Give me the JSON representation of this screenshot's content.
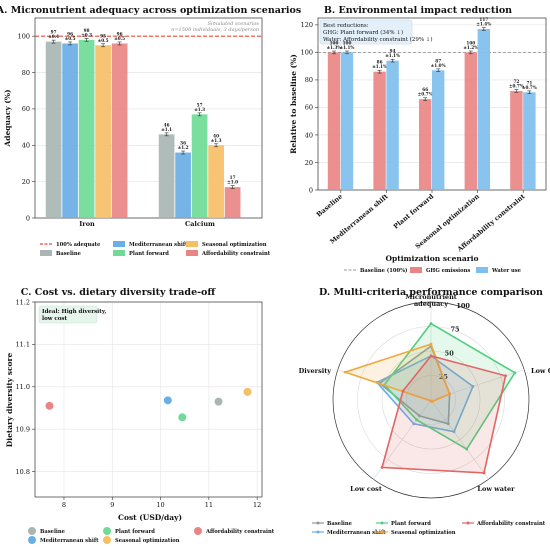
{
  "chart_data": [
    {
      "panel": "A",
      "type": "bar",
      "title": "A. Micronutrient adequacy across optimization scenarios",
      "ylabel": "Adequacy (%)",
      "ylim": [
        0,
        110
      ],
      "yticks": [
        "0",
        "20",
        "40",
        "60",
        "80",
        "100"
      ],
      "categories": [
        "Iron",
        "Calcium"
      ],
      "reference_line": {
        "value": 100,
        "label": "100% adequate",
        "color": "#e74c3c"
      },
      "annotation": "Simulated scenarios\nn=1500 individuals, 3 days/person",
      "series": [
        {
          "name": "Baseline",
          "color": "#a9b6b4",
          "values": [
            97,
            46
          ],
          "labels": [
            "97\n±0.4",
            "46\n±1.1"
          ]
        },
        {
          "name": "Mediterranean shift",
          "color": "#6aaee6",
          "values": [
            96,
            36
          ],
          "labels": [
            "96\n±0.5",
            "36\n±1.2"
          ]
        },
        {
          "name": "Plant forward",
          "color": "#6fdb97",
          "values": [
            98,
            57
          ],
          "labels": [
            "98\n±0.3",
            "57\n±1.3"
          ]
        },
        {
          "name": "Seasonal optimization",
          "color": "#f5bf66",
          "values": [
            95,
            40
          ],
          "labels": [
            "95\n±0.5",
            "40\n±1.3"
          ]
        },
        {
          "name": "Affordability constraint",
          "color": "#e98585",
          "values": [
            96,
            17
          ],
          "labels": [
            "96\n±0.5",
            "17\n±1.0"
          ]
        }
      ],
      "legend": [
        "100% adequate",
        "Baseline",
        "Mediterranean shift",
        "Plant forward",
        "Seasonal optimization",
        "Affordability constraint"
      ]
    },
    {
      "panel": "B",
      "type": "bar",
      "title": "B. Environmental impact reduction",
      "xlabel": "Optimization scenario",
      "ylabel": "Relative to baseline (%)",
      "ylim": [
        0,
        125
      ],
      "yticks": [
        "0",
        "20",
        "40",
        "60",
        "80",
        "100",
        "120"
      ],
      "categories": [
        "Baseline",
        "Mediterranean shift",
        "Plant forward",
        "Seasonal optimization",
        "Affordability constraint"
      ],
      "reference_line": {
        "value": 100,
        "label": "Baseline (100%)",
        "color": "#999999"
      },
      "infobox": [
        "Best reductions:",
        "GHG: Plant forward (34% ↓)",
        "Water: Affordability constraint (29% ↓)"
      ],
      "series": [
        {
          "name": "GHG emissions",
          "color": "#e98585",
          "values": [
            100,
            86,
            66,
            100,
            72
          ],
          "labels": [
            "100\n±1.3%",
            "86\n±1.1%",
            "66\n±0.7%",
            "100\n±1.2%",
            "72\n±0.7%"
          ]
        },
        {
          "name": "Water use",
          "color": "#7fbfee",
          "values": [
            100,
            94,
            87,
            117,
            71
          ],
          "labels": [
            "100\n±1.1%",
            "94\n±1.1%",
            "87\n±1.0%",
            "117\n±1.4%",
            "71\n±0.7%"
          ]
        }
      ],
      "legend": [
        "Baseline (100%)",
        "GHG emissions",
        "Water use"
      ]
    },
    {
      "panel": "C",
      "type": "scatter",
      "title": "C. Cost vs. dietary diversity trade-off",
      "xlabel": "Cost (USD/day)",
      "ylabel": "Dietary diversity score",
      "xlim": [
        7.4,
        12.1
      ],
      "ylim": [
        10.74,
        11.2
      ],
      "xticks": [
        "8",
        "9",
        "10",
        "11",
        "12"
      ],
      "yticks": [
        "10.8",
        "10.9",
        "11.0",
        "11.1",
        "11.2"
      ],
      "infobox": [
        "Ideal: High diversity,",
        "low cost"
      ],
      "points": [
        {
          "name": "Baseline",
          "x": 11.2,
          "y": 10.965,
          "color": "#a9b6b4"
        },
        {
          "name": "Mediterranean shift",
          "x": 10.15,
          "y": 10.968,
          "color": "#6aaee6"
        },
        {
          "name": "Plant forward",
          "x": 10.45,
          "y": 10.928,
          "color": "#6fdb97"
        },
        {
          "name": "Seasonal optimization",
          "x": 11.8,
          "y": 10.988,
          "color": "#f5bf66"
        },
        {
          "name": "Affordability constraint",
          "x": 7.7,
          "y": 10.955,
          "color": "#e98585"
        }
      ],
      "legend": [
        "Baseline",
        "Mediterranean shift",
        "Plant forward",
        "Seasonal optimization",
        "Affordability constraint"
      ]
    },
    {
      "panel": "D",
      "type": "radar",
      "title": "D. Multi-criteria performance comparison",
      "axes": [
        "Micronutrient\nadequacy",
        "Low GHG",
        "Low water",
        "Low cost",
        "Diversity"
      ],
      "rlim": [
        0,
        100
      ],
      "rticks": [
        "25",
        "50",
        "75",
        "100"
      ],
      "series": [
        {
          "name": "Baseline",
          "color": "#8f9a98",
          "values": [
            55,
            20,
            30,
            20,
            55
          ]
        },
        {
          "name": "Mediterranean shift",
          "color": "#6aaee6",
          "values": [
            45,
            45,
            40,
            30,
            58
          ]
        },
        {
          "name": "Plant forward",
          "color": "#4fcf7e",
          "values": [
            78,
            90,
            62,
            25,
            50
          ]
        },
        {
          "name": "Seasonal optimization",
          "color": "#f0a93a",
          "values": [
            57,
            20,
            2,
            1,
            92
          ]
        },
        {
          "name": "Affordability constraint",
          "color": "#e06666",
          "values": [
            45,
            80,
            92,
            85,
            30
          ]
        }
      ],
      "legend": [
        "Baseline",
        "Mediterranean shift",
        "Plant forward",
        "Seasonal optimization",
        "Affordability constraint"
      ]
    }
  ]
}
